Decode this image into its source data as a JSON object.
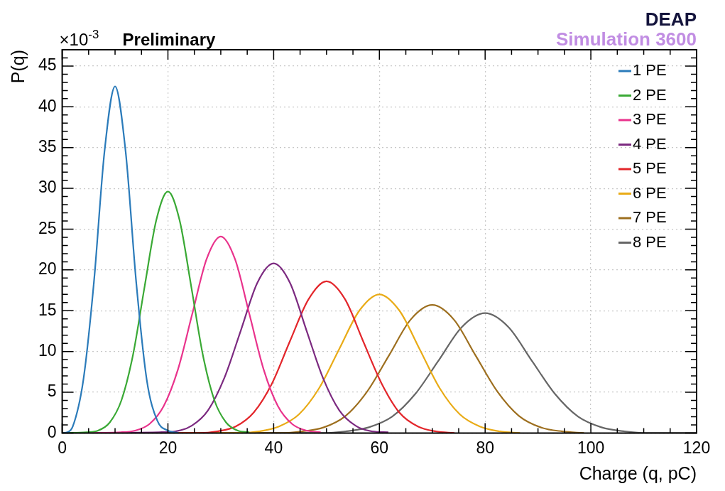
{
  "chart_data": {
    "type": "line",
    "title": "Preliminary",
    "ylabel": "P(q)",
    "xlabel": "Charge (q, pC)",
    "annotations": [
      "×10$^{-3}$",
      "DEAP",
      "Simulation 3600"
    ],
    "xlim": [
      0,
      120
    ],
    "xticks": [
      0,
      20,
      40,
      60,
      80,
      100,
      120
    ],
    "ylim": [
      0,
      47
    ],
    "yticks": [
      0,
      5,
      10,
      15,
      20,
      25,
      30,
      35,
      40,
      45
    ],
    "grid": true,
    "legend": "top right",
    "marker": "none",
    "line_style": "solid",
    "series": [
      {
        "name": "1 PE",
        "color": "#2b7bba",
        "x": [
          0,
          1,
          2,
          4,
          6,
          8,
          10,
          12,
          14,
          16,
          18,
          20,
          22
        ],
        "values": [
          0,
          0.1,
          0.8,
          6.5,
          18.5,
          34.5,
          42.5,
          34.5,
          18.5,
          6.5,
          1.5,
          0.3,
          0
        ]
      },
      {
        "name": "2 PE",
        "color": "#3aa935",
        "x": [
          0,
          4.6,
          6.8,
          9,
          11.2,
          13.4,
          15.6,
          17.8,
          20,
          22.2,
          24.4,
          26.6,
          28.8,
          31,
          33.2,
          35.4
        ],
        "values": [
          0,
          0.1,
          0.3,
          1.3,
          4,
          9.6,
          18,
          26.1,
          29.6,
          26.1,
          18,
          9.6,
          4,
          1.3,
          0.3,
          0.1
        ]
      },
      {
        "name": "3 PE",
        "color": "#e9338c",
        "x": [
          0,
          11.1,
          13.8,
          16.5,
          19.2,
          21.9,
          24.6,
          27.3,
          30,
          32.7,
          35.4,
          38.1,
          40.8,
          43.5,
          46.2,
          48.9
        ],
        "values": [
          0,
          0.1,
          0.3,
          1.1,
          3.3,
          7.8,
          14.6,
          21.3,
          24.1,
          21.3,
          14.6,
          7.8,
          3.3,
          1.1,
          0.3,
          0.1
        ]
      },
      {
        "name": "4 PE",
        "color": "#7c2a80",
        "x": [
          0,
          18.3,
          21.4,
          24.5,
          27.6,
          30.7,
          33.8,
          36.9,
          40,
          43.1,
          46.2,
          49.3,
          52.4,
          55.5,
          58.6,
          61.7
        ],
        "values": [
          0,
          0.1,
          0.2,
          0.9,
          2.8,
          6.8,
          12.6,
          18.4,
          20.8,
          18.4,
          12.6,
          6.8,
          2.8,
          0.9,
          0.2,
          0.1
        ]
      },
      {
        "name": "5 PE",
        "color": "#e3262b",
        "x": [
          0,
          25.9,
          29.3,
          32.8,
          36.2,
          39.7,
          43.1,
          46.6,
          50,
          53.5,
          56.9,
          60.4,
          63.8,
          67.3,
          70.7,
          74.2
        ],
        "values": [
          0,
          0,
          0.2,
          0.8,
          2.5,
          6.1,
          11.3,
          16.4,
          18.6,
          16.4,
          11.3,
          6.1,
          2.5,
          0.8,
          0.2,
          0
        ]
      },
      {
        "name": "6 PE",
        "color": "#e9ab16",
        "x": [
          0,
          33.4,
          37.2,
          41,
          44.8,
          48.6,
          52.4,
          56.2,
          60,
          63.8,
          67.6,
          71.4,
          75.2,
          79,
          82.8,
          86.6
        ],
        "values": [
          0,
          0,
          0.2,
          0.8,
          2.3,
          5.5,
          10.3,
          15,
          17,
          15,
          10.3,
          5.5,
          2.3,
          0.8,
          0.2,
          0
        ]
      },
      {
        "name": "7 PE",
        "color": "#9d6f1f",
        "x": [
          0,
          41.3,
          45.4,
          49.5,
          53.6,
          57.7,
          61.8,
          65.9,
          70,
          74.1,
          78.2,
          82.3,
          86.4,
          90.5,
          94.6,
          98.7
        ],
        "values": [
          0,
          0,
          0.2,
          0.7,
          2.1,
          5.1,
          9.5,
          13.9,
          15.7,
          13.9,
          9.5,
          5.1,
          2.1,
          0.7,
          0.2,
          0
        ]
      },
      {
        "name": "8 PE",
        "color": "#666666",
        "x": [
          0,
          49.2,
          53.6,
          58,
          62.4,
          66.8,
          71.2,
          75.6,
          80,
          84.4,
          88.8,
          93.2,
          97.6,
          102,
          106.4,
          110.8,
          120
        ],
        "values": [
          0,
          0,
          0.2,
          0.7,
          2,
          4.8,
          8.9,
          13,
          14.7,
          13,
          8.9,
          4.8,
          2,
          0.7,
          0.2,
          0,
          0
        ]
      }
    ]
  }
}
